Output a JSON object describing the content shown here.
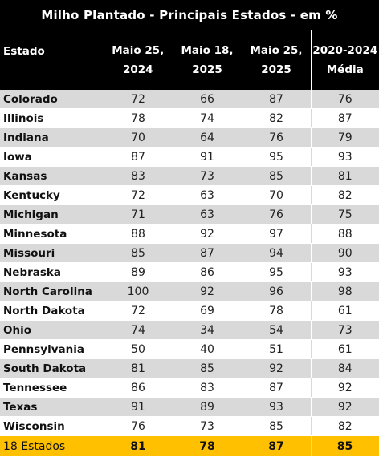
{
  "chart_data": {
    "type": "table",
    "title": "Milho Plantado - Principais Estados - em %",
    "columns": [
      {
        "line1": "Estado",
        "line2": ""
      },
      {
        "line1": "Maio 25,",
        "line2": "2024"
      },
      {
        "line1": "Maio 18,",
        "line2": "2025"
      },
      {
        "line1": "Maio 25,",
        "line2": "2025"
      },
      {
        "line1": "2020-2024",
        "line2": "Média"
      }
    ],
    "rows": [
      {
        "state": "Colorado",
        "values": [
          "72",
          "66",
          "87",
          "76"
        ]
      },
      {
        "state": "Illinois",
        "values": [
          "78",
          "74",
          "82",
          "87"
        ]
      },
      {
        "state": "Indiana",
        "values": [
          "70",
          "64",
          "76",
          "79"
        ]
      },
      {
        "state": "Iowa",
        "values": [
          "87",
          "91",
          "95",
          "93"
        ]
      },
      {
        "state": "Kansas",
        "values": [
          "83",
          "73",
          "85",
          "81"
        ]
      },
      {
        "state": "Kentucky",
        "values": [
          "72",
          "63",
          "70",
          "82"
        ]
      },
      {
        "state": "Michigan",
        "values": [
          "71",
          "63",
          "76",
          "75"
        ]
      },
      {
        "state": "Minnesota",
        "values": [
          "88",
          "92",
          "97",
          "88"
        ]
      },
      {
        "state": "Missouri",
        "values": [
          "85",
          "87",
          "94",
          "90"
        ]
      },
      {
        "state": "Nebraska",
        "values": [
          "89",
          "86",
          "95",
          "93"
        ]
      },
      {
        "state": "North Carolina",
        "values": [
          "100",
          "92",
          "96",
          "98"
        ]
      },
      {
        "state": "North Dakota",
        "values": [
          "72",
          "69",
          "78",
          "61"
        ]
      },
      {
        "state": "Ohio",
        "values": [
          "74",
          "34",
          "54",
          "73"
        ]
      },
      {
        "state": "Pennsylvania",
        "values": [
          "50",
          "40",
          "51",
          "61"
        ]
      },
      {
        "state": "South Dakota",
        "values": [
          "81",
          "85",
          "92",
          "84"
        ]
      },
      {
        "state": "Tennessee",
        "values": [
          "86",
          "83",
          "87",
          "92"
        ]
      },
      {
        "state": "Texas",
        "values": [
          "91",
          "89",
          "93",
          "92"
        ]
      },
      {
        "state": "Wisconsin",
        "values": [
          "76",
          "73",
          "85",
          "82"
        ]
      }
    ],
    "total": {
      "state": "18 Estados",
      "values": [
        "81",
        "78",
        "87",
        "85"
      ]
    }
  },
  "colors": {
    "header_bg": "#000000",
    "header_text": "#ffffff",
    "stripe": "#d9d9d9",
    "total_bg": "#ffc000"
  }
}
